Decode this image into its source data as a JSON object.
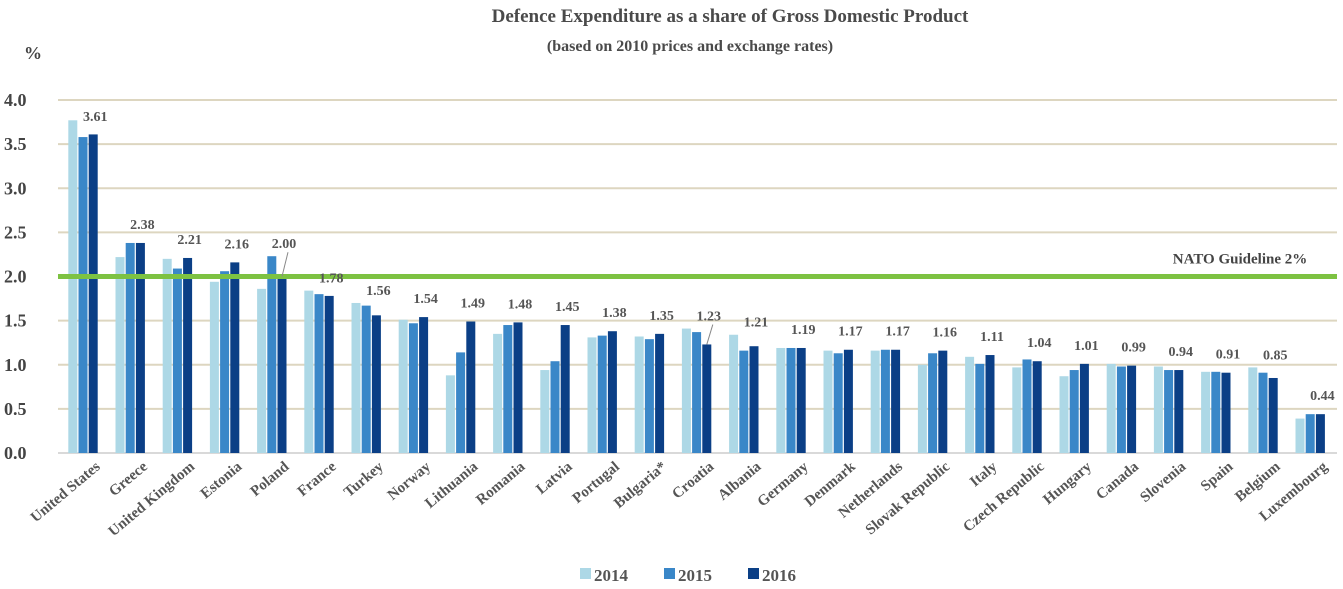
{
  "chart_data": {
    "type": "bar",
    "title": "Defence Expenditure as a share of Gross Domestic Product",
    "subtitle": "(based on 2010 prices and exchange rates)",
    "ylabel": "%",
    "xlabel": "",
    "ylim": [
      0,
      4.0
    ],
    "yticks": [
      "0.0",
      "0.5",
      "1.0",
      "1.5",
      "2.0",
      "2.5",
      "3.0",
      "3.5",
      "4.0"
    ],
    "grid": true,
    "legend_position": "bottom-center",
    "categories": [
      "United States",
      "Greece",
      "United Kingdom",
      "Estonia",
      "Poland",
      "France",
      "Turkey",
      "Norway",
      "Lithuania",
      "Romania",
      "Latvia",
      "Portugal",
      "Bulgaria*",
      "Croatia",
      "Albania",
      "Germany",
      "Denmark",
      "Netherlands",
      "Slovak Republic",
      "Italy",
      "Czech Republic",
      "Hungary",
      "Canada",
      "Slovenia",
      "Spain",
      "Belgium",
      "Luxembourg"
    ],
    "series": [
      {
        "name": "2014",
        "color": "#add8e6",
        "values": [
          3.77,
          2.22,
          2.2,
          1.94,
          1.86,
          1.84,
          1.7,
          1.51,
          0.88,
          1.35,
          0.94,
          1.31,
          1.32,
          1.41,
          1.34,
          1.19,
          1.16,
          1.16,
          1.0,
          1.09,
          0.97,
          0.87,
          1.01,
          0.98,
          0.92,
          0.97,
          0.39
        ]
      },
      {
        "name": "2015",
        "color": "#3a87c8",
        "values": [
          3.58,
          2.38,
          2.09,
          2.06,
          2.23,
          1.8,
          1.67,
          1.47,
          1.14,
          1.45,
          1.04,
          1.33,
          1.29,
          1.37,
          1.16,
          1.19,
          1.13,
          1.17,
          1.13,
          1.01,
          1.06,
          0.94,
          0.98,
          0.94,
          0.92,
          0.91,
          0.44
        ]
      },
      {
        "name": "2016",
        "color": "#0b3f86",
        "values": [
          3.61,
          2.38,
          2.21,
          2.16,
          2.0,
          1.78,
          1.56,
          1.54,
          1.49,
          1.48,
          1.45,
          1.38,
          1.35,
          1.23,
          1.21,
          1.19,
          1.17,
          1.17,
          1.16,
          1.11,
          1.04,
          1.01,
          0.99,
          0.94,
          0.91,
          0.85,
          0.44
        ]
      }
    ],
    "data_labels": [
      "3.61",
      "2.38",
      "2.21",
      "2.16",
      "2.00",
      "1.78",
      "1.56",
      "1.54",
      "1.49",
      "1.48",
      "1.45",
      "1.38",
      "1.35",
      "1.23",
      "1.21",
      "1.19",
      "1.17",
      "1.17",
      "1.16",
      "1.11",
      "1.04",
      "1.01",
      "0.99",
      "0.94",
      "0.91",
      "0.85",
      "0.44"
    ],
    "reference_line": {
      "value": 2.0,
      "label": "NATO Guideline 2%",
      "color": "#7dc242"
    },
    "gridline_color": "#ddd6c0"
  }
}
